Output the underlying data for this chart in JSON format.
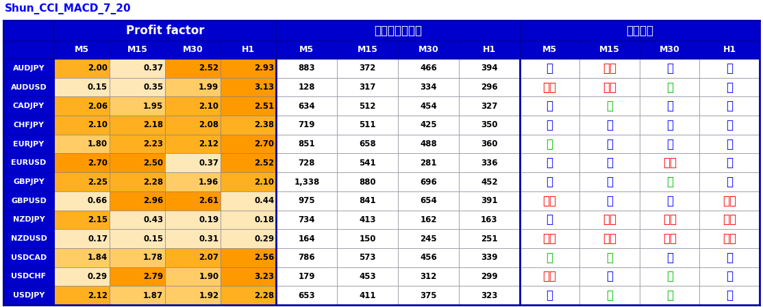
{
  "title": "Shun_CCI_MACD_7_20",
  "title_color": "#0000FF",
  "blue_bg": "#0000CC",
  "white_bg": "#FFFFFF",
  "section_headers": [
    "Profit factor",
    "エントリー回数",
    "お勧め度"
  ],
  "col_headers": [
    "M5",
    "M15",
    "M30",
    "H1",
    "M5",
    "M15",
    "M30",
    "H1",
    "M5",
    "M15",
    "M30",
    "H1"
  ],
  "rows": [
    "AUDJPY",
    "AUDUSD",
    "CADJPY",
    "CHFJPY",
    "EURJPY",
    "EURUSD",
    "GBPJPY",
    "GBPUSD",
    "NZDJPY",
    "NZDUSD",
    "USDCAD",
    "USDCHF",
    "USDJPY"
  ],
  "pf_data": [
    [
      2.0,
      0.37,
      2.52,
      2.93
    ],
    [
      0.15,
      0.35,
      1.99,
      3.13
    ],
    [
      2.06,
      1.95,
      2.1,
      2.51
    ],
    [
      2.1,
      2.18,
      2.08,
      2.38
    ],
    [
      1.8,
      2.23,
      2.12,
      2.7
    ],
    [
      2.7,
      2.5,
      0.37,
      2.52
    ],
    [
      2.25,
      2.28,
      1.96,
      2.1
    ],
    [
      0.66,
      2.96,
      2.61,
      0.44
    ],
    [
      2.15,
      0.43,
      0.19,
      0.18
    ],
    [
      0.17,
      0.15,
      0.31,
      0.29
    ],
    [
      1.84,
      1.78,
      2.07,
      2.56
    ],
    [
      0.29,
      2.79,
      1.9,
      3.23
    ],
    [
      2.12,
      1.87,
      1.92,
      2.28
    ]
  ],
  "entry_data": [
    [
      883,
      372,
      466,
      394
    ],
    [
      128,
      317,
      334,
      296
    ],
    [
      634,
      512,
      454,
      327
    ],
    [
      719,
      511,
      425,
      350
    ],
    [
      851,
      658,
      488,
      360
    ],
    [
      728,
      541,
      281,
      336
    ],
    [
      1338,
      880,
      696,
      452
    ],
    [
      975,
      841,
      654,
      391
    ],
    [
      734,
      413,
      162,
      163
    ],
    [
      164,
      150,
      245,
      251
    ],
    [
      786,
      573,
      456,
      339
    ],
    [
      179,
      453,
      312,
      299
    ],
    [
      653,
      411,
      375,
      323
    ]
  ],
  "rating_data": [
    [
      "優",
      "不可",
      "優",
      "優"
    ],
    [
      "不可",
      "不可",
      "良",
      "優"
    ],
    [
      "優",
      "良",
      "優",
      "優"
    ],
    [
      "優",
      "優",
      "優",
      "優"
    ],
    [
      "良",
      "優",
      "優",
      "優"
    ],
    [
      "優",
      "優",
      "不可",
      "優"
    ],
    [
      "優",
      "優",
      "良",
      "優"
    ],
    [
      "不可",
      "優",
      "優",
      "不可"
    ],
    [
      "優",
      "不可",
      "不可",
      "不可"
    ],
    [
      "不可",
      "不可",
      "不可",
      "不可"
    ],
    [
      "良",
      "良",
      "優",
      "優"
    ],
    [
      "不可",
      "優",
      "良",
      "優"
    ],
    [
      "優",
      "良",
      "良",
      "優"
    ]
  ],
  "rating_colors": {
    "優": "#0000FF",
    "良": "#00BB00",
    "不可": "#FF0000"
  }
}
